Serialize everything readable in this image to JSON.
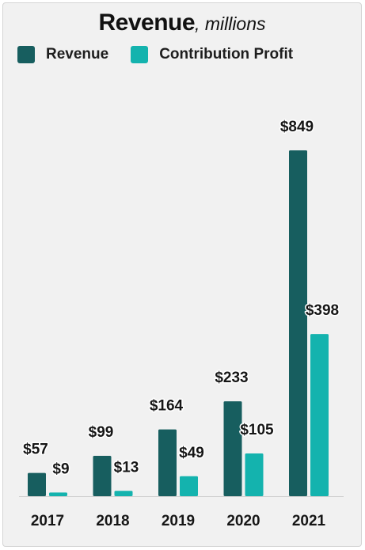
{
  "chart_data": {
    "type": "bar",
    "title": "Revenue",
    "subtitle": "millions",
    "categories": [
      "2017",
      "2018",
      "2019",
      "2020",
      "2021"
    ],
    "series": [
      {
        "name": "Revenue",
        "color": "#175e5f",
        "values": [
          57,
          99,
          164,
          233,
          849
        ],
        "labels": [
          "$57",
          "$99",
          "$164",
          "$233",
          "$849"
        ]
      },
      {
        "name": "Contribution Profit",
        "color": "#14b3ae",
        "values": [
          9,
          13,
          49,
          105,
          398
        ],
        "labels": [
          "$9",
          "$13",
          "$49",
          "$105",
          "$398"
        ]
      }
    ],
    "xlabel": "",
    "ylabel": "",
    "ylim": [
      0,
      849
    ],
    "grid": false,
    "legend_position": "top-left"
  }
}
